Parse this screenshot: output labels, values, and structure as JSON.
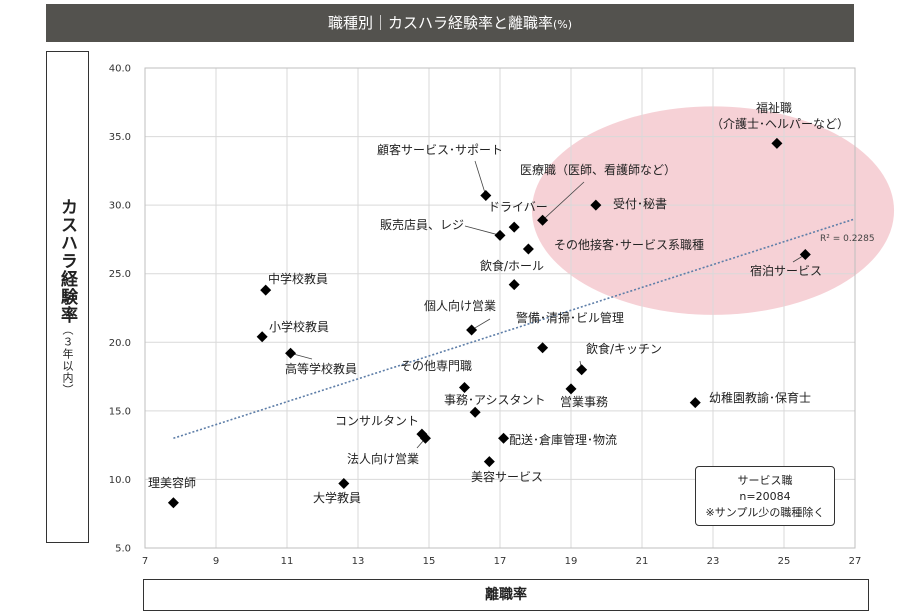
{
  "title": "職種別｜カスハラ経験率と離職率",
  "title_unit": "(%)",
  "note": {
    "line1": "サービス職",
    "line2": "n=20084",
    "line3": "※サンプル少の職種除く"
  },
  "r_squared": "R² = 0.2285",
  "chart_data": {
    "type": "scatter",
    "xlabel": "離職率",
    "ylabel": "カスハラ経験率",
    "ylabel_sub": "（３年以内）",
    "xlim": [
      7,
      27
    ],
    "ylim": [
      5,
      40
    ],
    "x_ticks": [
      7,
      9,
      11,
      13,
      15,
      17,
      19,
      21,
      23,
      25,
      27
    ],
    "y_ticks": [
      "5.0",
      "10.0",
      "15.0",
      "20.0",
      "25.0",
      "30.0",
      "35.0",
      "40.0"
    ],
    "grid": true,
    "trendline": {
      "type": "linear",
      "x": [
        7.8,
        27
      ],
      "y": [
        13.0,
        29.0
      ]
    },
    "highlight_ellipse": {
      "cx": 23.0,
      "cy": 29.6,
      "rx": 5.1,
      "ry": 7.6,
      "color": "#f4c9cf"
    },
    "points": [
      {
        "label": "福祉職",
        "label2": "（介護士･ヘルパーなど）",
        "x": 24.8,
        "y": 34.5
      },
      {
        "label": "顧客サービス･サポート",
        "x": 16.6,
        "y": 30.7
      },
      {
        "label": "医療職（医師、看護師など）",
        "x": 18.2,
        "y": 28.9
      },
      {
        "label": "受付･秘書",
        "x": 19.7,
        "y": 30.0
      },
      {
        "label": "ドライバー",
        "x": 17.4,
        "y": 28.4
      },
      {
        "label": "販売店員、レジ",
        "x": 17.0,
        "y": 27.8
      },
      {
        "label": "その他接客･サービス系職種",
        "x": 17.8,
        "y": 26.8
      },
      {
        "label": "宿泊サービス",
        "x": 25.6,
        "y": 26.4
      },
      {
        "label": "飲食/ホール",
        "x": 17.4,
        "y": 24.2
      },
      {
        "label": "中学校教員",
        "x": 10.4,
        "y": 23.8
      },
      {
        "label": "個人向け営業",
        "x": 16.2,
        "y": 20.9
      },
      {
        "label": "小学校教員",
        "x": 10.3,
        "y": 20.4
      },
      {
        "label": "警備･清掃･ビル管理",
        "x": 18.2,
        "y": 19.6
      },
      {
        "label": "高等学校教員",
        "x": 11.1,
        "y": 19.2
      },
      {
        "label": "飲食/キッチン",
        "x": 19.3,
        "y": 18.0
      },
      {
        "label": "その他専門職",
        "x": 16.0,
        "y": 16.7
      },
      {
        "label": "営業事務",
        "x": 19.0,
        "y": 16.6
      },
      {
        "label": "事務･アシスタント",
        "x": 16.3,
        "y": 14.9
      },
      {
        "label": "幼稚園教諭･保育士",
        "x": 22.5,
        "y": 15.6
      },
      {
        "label": "コンサルタント",
        "x": 14.8,
        "y": 13.3
      },
      {
        "label": "法人向け営業",
        "x": 14.9,
        "y": 13.0
      },
      {
        "label": "配送･倉庫管理･物流",
        "x": 17.1,
        "y": 13.0
      },
      {
        "label": "美容サービス",
        "x": 16.7,
        "y": 11.3
      },
      {
        "label": "大学教員",
        "x": 12.6,
        "y": 9.7
      },
      {
        "label": "理美容師",
        "x": 7.8,
        "y": 8.3
      }
    ]
  }
}
